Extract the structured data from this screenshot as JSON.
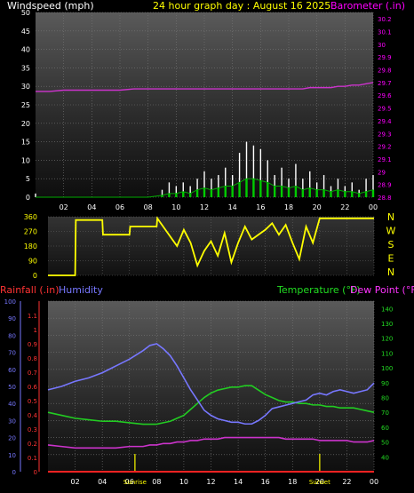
{
  "panel_top": {
    "left_title": "Windspeed (mph)",
    "center_title": "24 hour graph day : August 16 2025",
    "right_title": "Barometer (.in)"
  },
  "panel_bottom": {
    "rain_label": "Rainfall (.in)",
    "humidity_label": "Humidity",
    "temp_label": "Temperature (°F)",
    "dew_label": "Dew Point (°F)",
    "sunrise_label": "Sunrise",
    "sunset_label": "Sunset",
    "sunrise_hour": 6.4,
    "sunset_hour": 20.0
  },
  "colors": {
    "background": "#000000",
    "title_left": "#ffffff",
    "title_center": "#ffff00",
    "title_right": "#ff00ff",
    "wind_gust": "#ffffff",
    "wind_avg": "#00cc00",
    "barometer": "#cc33cc",
    "direction": "#ffff00",
    "rain": "#ff2222",
    "humidity": "#7777ff",
    "temperature": "#22cc22",
    "dewpoint": "#cc33cc"
  },
  "chart_data": [
    {
      "type": "line",
      "name": "wind-barometer",
      "x": [
        0,
        1,
        2,
        3,
        4,
        5,
        6,
        7,
        8,
        9,
        9.5,
        10,
        10.5,
        11,
        11.5,
        12,
        12.5,
        13,
        13.5,
        14,
        14.5,
        15,
        15.5,
        16,
        16.5,
        17,
        17.5,
        18,
        18.5,
        19,
        19.5,
        20,
        20.5,
        21,
        21.5,
        22,
        22.5,
        23,
        23.5,
        24
      ],
      "xticks": [
        "02",
        "04",
        "06",
        "08",
        "10",
        "12",
        "14",
        "16",
        "18",
        "20",
        "22",
        "00"
      ],
      "ylim": [
        0,
        50
      ],
      "yticks": [
        0,
        5,
        10,
        15,
        20,
        25,
        30,
        35,
        40,
        45,
        50
      ],
      "y2lim": [
        28.8,
        30.25
      ],
      "y2ticks": [
        28.8,
        28.9,
        29,
        29.1,
        29.2,
        29.3,
        29.4,
        29.5,
        29.6,
        29.7,
        29.8,
        29.9,
        30,
        30.1,
        30.2
      ],
      "series": [
        {
          "key": "gust",
          "values": [
            1,
            0,
            0,
            0,
            0,
            0,
            0,
            0,
            0,
            2,
            4,
            3,
            4,
            3,
            5,
            7,
            5,
            6,
            8,
            6,
            12,
            15,
            14,
            13,
            10,
            6,
            8,
            5,
            9,
            5,
            7,
            4,
            6,
            3,
            5,
            3,
            4,
            2,
            5,
            6
          ]
        },
        {
          "key": "avg",
          "values": [
            0,
            0,
            0,
            0,
            0,
            0,
            0,
            0,
            0,
            0.5,
            1,
            1,
            1.5,
            1,
            2,
            2.5,
            2,
            2.5,
            3,
            3,
            4,
            5,
            5,
            4.5,
            4,
            3,
            3,
            2.5,
            3,
            2,
            2.5,
            2,
            2,
            1.5,
            2,
            1.5,
            1.5,
            1,
            1.5,
            2
          ]
        },
        {
          "key": "barometer",
          "values": [
            29.63,
            29.63,
            29.64,
            29.64,
            29.64,
            29.64,
            29.64,
            29.65,
            29.65,
            29.65,
            29.65,
            29.65,
            29.65,
            29.65,
            29.65,
            29.65,
            29.65,
            29.65,
            29.65,
            29.65,
            29.65,
            29.65,
            29.65,
            29.65,
            29.65,
            29.65,
            29.65,
            29.65,
            29.65,
            29.65,
            29.66,
            29.66,
            29.66,
            29.66,
            29.67,
            29.67,
            29.68,
            29.68,
            29.69,
            29.7
          ]
        }
      ]
    },
    {
      "type": "scatter",
      "name": "wind-direction",
      "ylim": [
        0,
        360
      ],
      "yticks": [
        0,
        90,
        180,
        270,
        360
      ],
      "compass": [
        "N",
        "W",
        "S",
        "E",
        "N"
      ],
      "x": [
        0,
        2,
        2.05,
        4,
        4.05,
        6,
        6.05,
        8,
        8.05,
        9.5,
        10,
        10.5,
        11,
        11.5,
        12,
        12.5,
        13,
        13.5,
        14,
        14.5,
        15,
        15.5,
        16,
        16.5,
        17,
        17.5,
        18,
        18.5,
        19,
        19.5,
        20,
        24
      ],
      "values": [
        0,
        0,
        340,
        340,
        250,
        250,
        300,
        300,
        350,
        180,
        280,
        200,
        60,
        150,
        210,
        120,
        260,
        80,
        200,
        300,
        220,
        250,
        280,
        320,
        250,
        310,
        200,
        100,
        300,
        200,
        350,
        350
      ]
    },
    {
      "type": "line",
      "name": "temp-humidity",
      "x": [
        0,
        1,
        2,
        3,
        4,
        5,
        6,
        7,
        7.5,
        8,
        8.5,
        9,
        9.5,
        10,
        10.5,
        11,
        11.5,
        12,
        12.5,
        13,
        13.5,
        14,
        14.5,
        15,
        15.5,
        16,
        16.5,
        17,
        17.5,
        18,
        18.5,
        19,
        19.5,
        20,
        20.5,
        21,
        21.5,
        22,
        22.5,
        23,
        23.5,
        24
      ],
      "xticks": [
        "02",
        "04",
        "06",
        "08",
        "10",
        "12",
        "14",
        "16",
        "18",
        "20",
        "22",
        "00"
      ],
      "humidity_lim": [
        0,
        100
      ],
      "humidity_ticks": [
        0,
        10,
        20,
        30,
        40,
        50,
        60,
        70,
        80,
        90,
        100
      ],
      "rain_lim": [
        0,
        1.2
      ],
      "rain_ticks": [
        0,
        0.1,
        0.2,
        0.3,
        0.4,
        0.5,
        0.6,
        0.7,
        0.8,
        0.9,
        1,
        1.1
      ],
      "temp_lim": [
        30,
        145
      ],
      "temp_ticks": [
        40,
        50,
        60,
        70,
        80,
        90,
        100,
        110,
        120,
        130,
        140
      ],
      "series": [
        {
          "key": "humidity",
          "values": [
            48,
            50,
            53,
            55,
            58,
            62,
            66,
            71,
            74,
            75,
            72,
            68,
            62,
            55,
            48,
            42,
            36,
            33,
            31,
            30,
            29,
            29,
            28,
            28,
            30,
            33,
            37,
            38,
            39,
            40,
            41,
            42,
            45,
            46,
            45,
            47,
            48,
            47,
            46,
            47,
            48,
            52
          ]
        },
        {
          "key": "temperature",
          "values": [
            70,
            68,
            66,
            65,
            64,
            64,
            63,
            62,
            62,
            62,
            63,
            64,
            66,
            68,
            72,
            76,
            80,
            83,
            85,
            86,
            87,
            87,
            88,
            88,
            85,
            82,
            80,
            78,
            77,
            77,
            76,
            76,
            75,
            75,
            74,
            74,
            73,
            73,
            73,
            72,
            71,
            70
          ]
        },
        {
          "key": "dewpoint",
          "values": [
            48,
            47,
            46,
            46,
            46,
            46,
            47,
            47,
            48,
            48,
            49,
            49,
            50,
            50,
            51,
            51,
            52,
            52,
            52,
            53,
            53,
            53,
            53,
            53,
            53,
            53,
            53,
            53,
            52,
            52,
            52,
            52,
            52,
            51,
            51,
            51,
            51,
            51,
            50,
            50,
            50,
            51
          ]
        },
        {
          "key": "rain",
          "values": [
            0,
            0,
            0,
            0,
            0,
            0,
            0,
            0,
            0,
            0,
            0,
            0,
            0,
            0,
            0,
            0,
            0,
            0,
            0,
            0,
            0,
            0,
            0,
            0,
            0,
            0,
            0,
            0,
            0,
            0,
            0,
            0,
            0,
            0,
            0,
            0,
            0,
            0,
            0,
            0,
            0,
            0
          ]
        }
      ]
    }
  ]
}
